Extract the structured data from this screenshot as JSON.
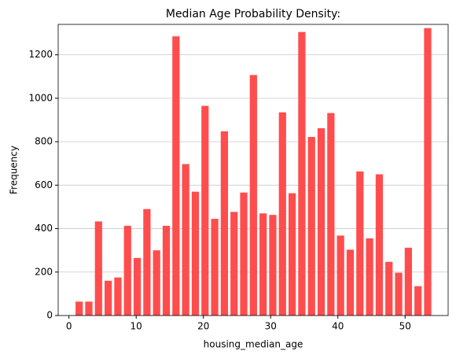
{
  "chart_data": {
    "type": "histogram",
    "title": "Median Age Probability Density:",
    "x_label": "housing_median_age",
    "y_label": "Frequency",
    "bins": [
      0.8,
      2.24,
      3.68,
      5.12,
      6.56,
      8,
      9.44,
      10.88,
      12.32,
      13.76,
      15.2,
      16.64,
      18.08,
      19.52,
      20.96,
      22.4,
      23.84,
      25.28,
      26.72,
      28.16,
      29.6,
      31.04,
      32.48,
      33.92,
      35.36,
      36.8,
      38.24,
      39.68,
      41.12,
      42.56,
      44,
      45.44,
      46.88,
      48.32,
      49.76,
      51.2,
      52.64,
      54.08
    ],
    "values": [
      64,
      64,
      433,
      160,
      175,
      413,
      265,
      490,
      300,
      413,
      1285,
      697,
      570,
      965,
      445,
      848,
      477,
      566,
      1107,
      470,
      463,
      935,
      563,
      1305,
      822,
      862,
      932,
      368,
      303,
      663,
      355,
      650,
      247,
      197,
      312,
      135,
      1323
    ],
    "color": "#ff4d4d",
    "xlim": [
      -1.6,
      56.4
    ],
    "xticks": [
      0,
      10,
      20,
      30,
      40,
      50
    ],
    "ylim": [
      0,
      1340
    ],
    "yticks": [
      0,
      200,
      400,
      600,
      800,
      1000,
      1200
    ],
    "grid": true
  }
}
